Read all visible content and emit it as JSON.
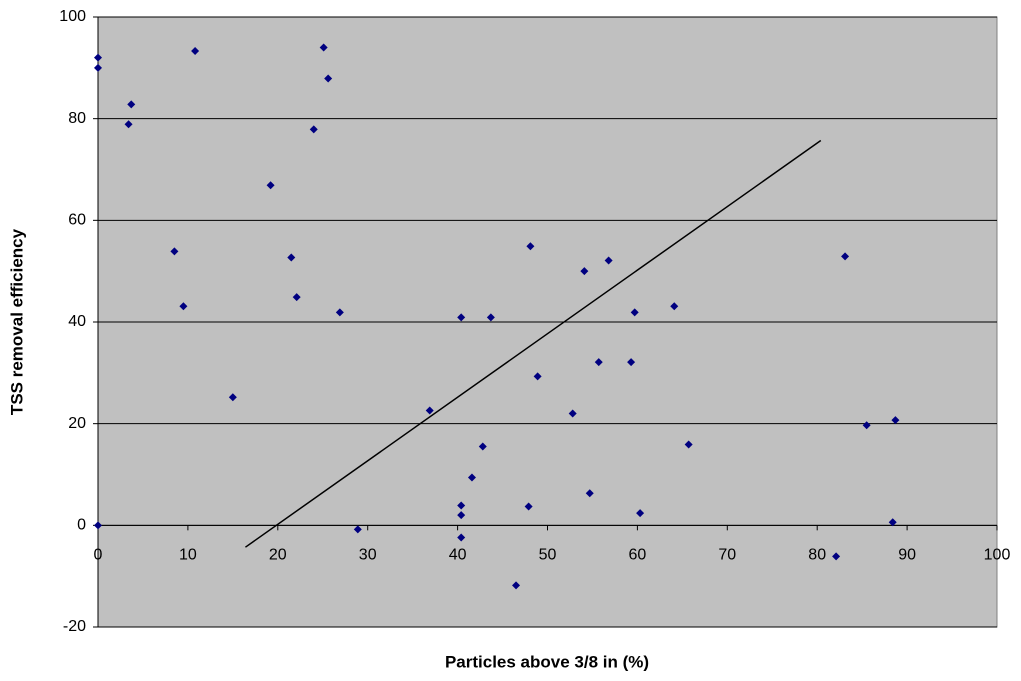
{
  "chart_data": {
    "type": "scatter",
    "x_label": "Particles above 3/8 in (%)",
    "y_label": "TSS removal efficiency",
    "x": [
      0,
      0,
      0,
      3.7,
      3.4,
      8.5,
      9.5,
      10.8,
      15.0,
      19.2,
      21.5,
      22.1,
      24.0,
      25.1,
      25.6,
      26.9,
      28.9,
      36.9,
      40.4,
      40.4,
      40.4,
      40.4,
      41.6,
      42.8,
      43.7,
      46.5,
      47.9,
      48.1,
      48.9,
      52.8,
      54.1,
      54.7,
      55.7,
      56.8,
      59.3,
      59.7,
      60.3,
      64.1,
      65.7,
      82.1,
      83.1,
      85.5,
      88.7,
      88.4
    ],
    "values": [
      92,
      90,
      0,
      82.8,
      78.9,
      53.9,
      43.1,
      93.3,
      25.2,
      66.9,
      52.7,
      44.9,
      77.9,
      94.0,
      87.9,
      41.9,
      -0.8,
      22.6,
      40.9,
      3.9,
      2.0,
      -2.4,
      9.4,
      15.5,
      40.9,
      -11.8,
      3.7,
      54.9,
      29.3,
      22.0,
      50.0,
      6.3,
      32.1,
      52.1,
      32.1,
      41.9,
      2.4,
      43.1,
      15.9,
      -6.1,
      52.9,
      19.7,
      20.7,
      0.6
    ],
    "color": "#000080",
    "trendline": {
      "x": [
        16.4,
        80.4
      ],
      "values": [
        -4.3,
        75.7
      ],
      "color": "#000000"
    },
    "xlim": [
      0,
      100
    ],
    "xticks": [
      0,
      10,
      20,
      30,
      40,
      50,
      60,
      70,
      80,
      90,
      100
    ],
    "ylim": [
      -20,
      100
    ],
    "yticks": [
      -20,
      0,
      20,
      40,
      60,
      80,
      100
    ],
    "grid": true
  }
}
